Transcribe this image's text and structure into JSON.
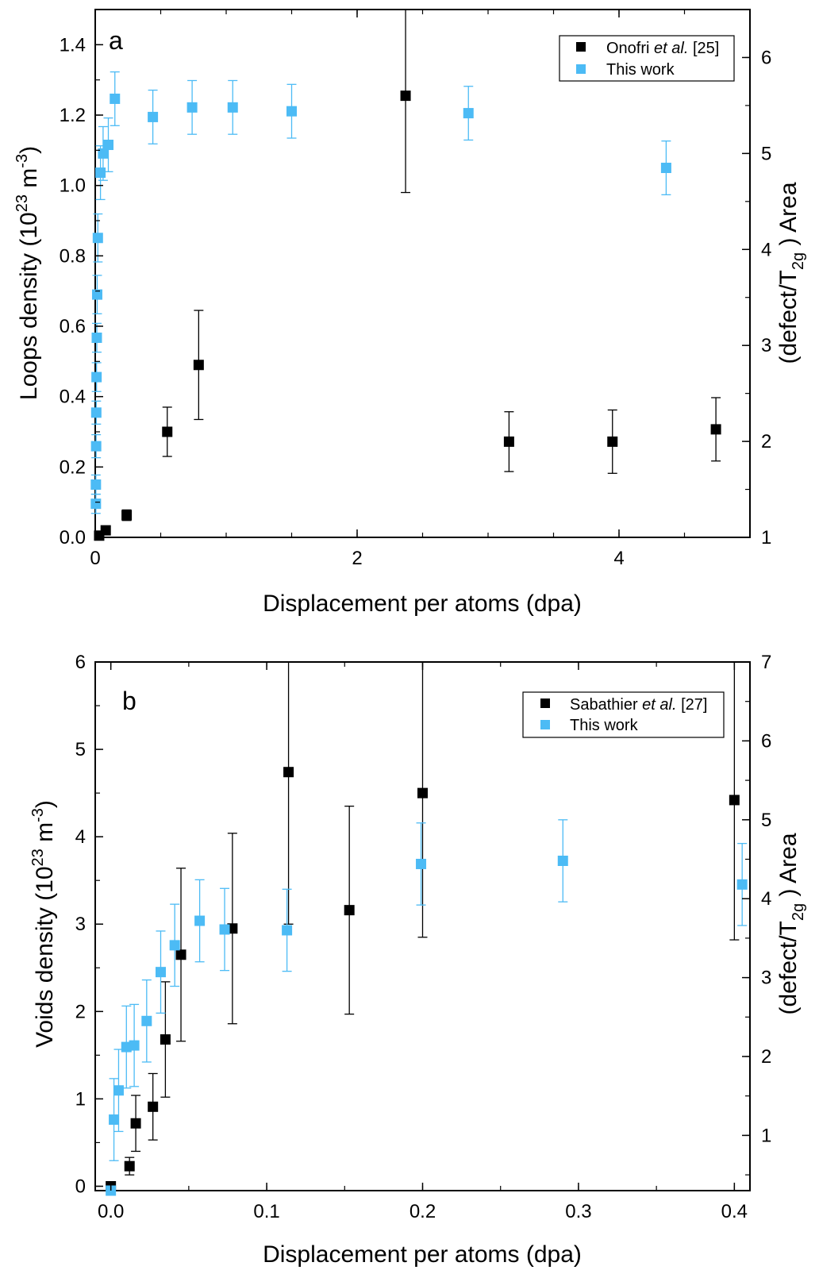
{
  "chart_data": [
    {
      "type": "scatter",
      "panel_label": "a",
      "xlabel": "Displacement per atoms (dpa)",
      "ylabel": "Loops density (10",
      "ylabel_exp1": "23",
      "ylabel_mid": " m",
      "ylabel_exp2": "-3",
      "ylabel_end": ")",
      "y2label": "(defect/T",
      "y2label_sub": "2g",
      "y2label_end": " ) Area",
      "xlim": [
        0,
        5
      ],
      "ylim": [
        0,
        1.5
      ],
      "y2lim": [
        1,
        6.5
      ],
      "x_ticks": [
        "0",
        "2",
        "4"
      ],
      "y_ticks": [
        "0.0",
        "0.2",
        "0.4",
        "0.6",
        "0.8",
        "1.0",
        "1.2",
        "1.4"
      ],
      "y2_ticks": [
        "1",
        "2",
        "3",
        "4",
        "5",
        "6"
      ],
      "legend_position": "top-right",
      "series": [
        {
          "name": "Onofri et al. [25]",
          "name_pre": "Onofri ",
          "name_ital": "et al.",
          "name_post": " [25]",
          "color": "#000000",
          "axis": "left",
          "points": [
            {
              "x": 0.03,
              "y": 0.005,
              "err": 0
            },
            {
              "x": 0.08,
              "y": 0.02,
              "err": 0
            },
            {
              "x": 0.24,
              "y": 0.063,
              "err": 0.015
            },
            {
              "x": 0.55,
              "y": 0.3,
              "err": 0.07
            },
            {
              "x": 0.79,
              "y": 0.49,
              "err": 0.155
            },
            {
              "x": 2.37,
              "y": 1.255,
              "err": 0.275
            },
            {
              "x": 3.16,
              "y": 0.272,
              "err": 0.085
            },
            {
              "x": 3.95,
              "y": 0.272,
              "err": 0.09
            },
            {
              "x": 4.74,
              "y": 0.307,
              "err": 0.09
            }
          ]
        },
        {
          "name": "This work",
          "color": "#4cbbf5",
          "axis": "right",
          "points": [
            {
              "x": 0.005,
              "y": 1.35,
              "err": 0.1
            },
            {
              "x": 0.005,
              "y": 1.55,
              "err": 0.1
            },
            {
              "x": 0.007,
              "y": 1.95,
              "err": 0.12
            },
            {
              "x": 0.008,
              "y": 2.3,
              "err": 0.12
            },
            {
              "x": 0.01,
              "y": 2.67,
              "err": 0.15
            },
            {
              "x": 0.012,
              "y": 3.08,
              "err": 0.15
            },
            {
              "x": 0.015,
              "y": 3.53,
              "err": 0.2
            },
            {
              "x": 0.02,
              "y": 4.12,
              "err": 0.25
            },
            {
              "x": 0.04,
              "y": 4.8,
              "err": 0.28
            },
            {
              "x": 0.06,
              "y": 5.0,
              "err": 0.28
            },
            {
              "x": 0.1,
              "y": 5.09,
              "err": 0.28
            },
            {
              "x": 0.15,
              "y": 5.57,
              "err": 0.28
            },
            {
              "x": 0.44,
              "y": 5.38,
              "err": 0.28
            },
            {
              "x": 0.74,
              "y": 5.48,
              "err": 0.28
            },
            {
              "x": 1.05,
              "y": 5.48,
              "err": 0.28
            },
            {
              "x": 1.5,
              "y": 5.44,
              "err": 0.28
            },
            {
              "x": 2.85,
              "y": 5.42,
              "err": 0.28
            },
            {
              "x": 4.36,
              "y": 4.85,
              "err": 0.28
            }
          ]
        }
      ]
    },
    {
      "type": "scatter",
      "panel_label": "b",
      "xlabel": "Displacement per atoms (dpa)",
      "ylabel": "Voids density (10",
      "ylabel_exp1": "23",
      "ylabel_mid": " m",
      "ylabel_exp2": "-3",
      "ylabel_end": ")",
      "y2label": "(defect/T",
      "y2label_sub": "2g",
      "y2label_end": " ) Area",
      "xlim": [
        -0.01,
        0.41
      ],
      "ylim": [
        -0.05,
        6
      ],
      "y2lim": [
        0.3,
        7
      ],
      "x_ticks": [
        "0.0",
        "0.1",
        "0.2",
        "0.3",
        "0.4"
      ],
      "y_ticks": [
        "0",
        "1",
        "2",
        "3",
        "4",
        "5",
        "6"
      ],
      "y2_ticks": [
        "1",
        "2",
        "3",
        "4",
        "5",
        "6",
        "7"
      ],
      "legend_position": "top-right",
      "series": [
        {
          "name": "Sabathier et al. [27]",
          "name_pre": "Sabathier ",
          "name_ital": "et al.",
          "name_post": " [27]",
          "color": "#000000",
          "axis": "left",
          "points": [
            {
              "x": 0.0,
              "y": 0.0,
              "err": 0
            },
            {
              "x": 0.012,
              "y": 0.23,
              "err": 0.1
            },
            {
              "x": 0.016,
              "y": 0.72,
              "err": 0.32
            },
            {
              "x": 0.027,
              "y": 0.91,
              "err": 0.38
            },
            {
              "x": 0.035,
              "y": 1.68,
              "err": 0.66
            },
            {
              "x": 0.045,
              "y": 2.65,
              "err": 0.99
            },
            {
              "x": 0.078,
              "y": 2.95,
              "err": 1.09
            },
            {
              "x": 0.114,
              "y": 4.74,
              "err": 1.74
            },
            {
              "x": 0.153,
              "y": 3.16,
              "err": 1.19
            },
            {
              "x": 0.2,
              "y": 4.5,
              "err": 1.65
            },
            {
              "x": 0.4,
              "y": 4.42,
              "err": 1.6
            }
          ]
        },
        {
          "name": "This work",
          "color": "#4cbbf5",
          "axis": "right",
          "points": [
            {
              "x": 0.0,
              "y": 0.3,
              "err": 0
            },
            {
              "x": 0.002,
              "y": 1.2,
              "err": 0.52
            },
            {
              "x": 0.005,
              "y": 1.57,
              "err": 0.52
            },
            {
              "x": 0.01,
              "y": 2.12,
              "err": 0.52
            },
            {
              "x": 0.015,
              "y": 2.14,
              "err": 0.52
            },
            {
              "x": 0.023,
              "y": 2.45,
              "err": 0.52
            },
            {
              "x": 0.032,
              "y": 3.07,
              "err": 0.52
            },
            {
              "x": 0.041,
              "y": 3.41,
              "err": 0.52
            },
            {
              "x": 0.057,
              "y": 3.72,
              "err": 0.52
            },
            {
              "x": 0.073,
              "y": 3.61,
              "err": 0.52
            },
            {
              "x": 0.113,
              "y": 3.6,
              "err": 0.52
            },
            {
              "x": 0.199,
              "y": 4.44,
              "err": 0.52
            },
            {
              "x": 0.29,
              "y": 4.48,
              "err": 0.52
            },
            {
              "x": 0.405,
              "y": 4.18,
              "err": 0.52
            }
          ]
        }
      ]
    }
  ]
}
